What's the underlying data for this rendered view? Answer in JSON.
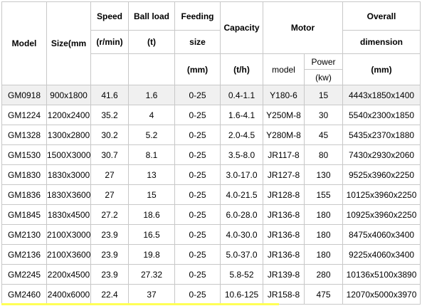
{
  "header": {
    "model": "Model",
    "size": "Size(mm",
    "speed": "Speed",
    "speed_unit": "(r/min)",
    "ball_load": "Ball load",
    "ball_load_unit": "(t)",
    "feeding": "Feeding",
    "feeding_sub": "size",
    "feeding_unit": "(mm)",
    "capacity": "Capacity",
    "capacity_unit": "(t/h)",
    "motor": "Motor",
    "motor_model": "model",
    "power": "Power",
    "power_unit": "(kw)",
    "overall": "Overall",
    "overall_sub": "dimension",
    "overall_unit": "(mm)"
  },
  "table": {
    "rows": [
      [
        "GM0918",
        "900x1800",
        "41.6",
        "1.6",
        "0-25",
        "0.4-1.1",
        "Y180-6",
        "15",
        "4443x1850x1400"
      ],
      [
        "GM1224",
        "1200x2400",
        "35.2",
        "4",
        "0-25",
        "1.6-4.1",
        "Y250M-8",
        "30",
        "5540x2300x1850"
      ],
      [
        "GM1328",
        "1300x2800",
        "30.2",
        "5.2",
        "0-25",
        "2.0-4.5",
        "Y280M-8",
        "45",
        "5435x2370x1880"
      ],
      [
        "GM1530",
        "1500X3000",
        "30.7",
        "8.1",
        "0-25",
        "3.5-8.0",
        "JR117-8",
        "80",
        "7430x2930x2060"
      ],
      [
        "GM1830",
        "1830x3000",
        "27",
        "13",
        "0-25",
        "3.0-17.0",
        "JR127-8",
        "130",
        "9525x3960x2250"
      ],
      [
        "GM1836",
        "1830X3600",
        "27",
        "15",
        "0-25",
        "4.0-21.5",
        "JR128-8",
        "155",
        "10125x3960x2250"
      ],
      [
        "GM1845",
        "1830x4500",
        "27.2",
        "18.6",
        "0-25",
        "6.0-28.0",
        "JR136-8",
        "180",
        "10925x3960x2250"
      ],
      [
        "GM2130",
        "2100X3000",
        "23.9",
        "16.5",
        "0-25",
        "4.0-30.0",
        "JR136-8",
        "180",
        "8475x4060x3400"
      ],
      [
        "GM2136",
        "2100X3600",
        "23.9",
        "19.8",
        "0-25",
        "5.0-37.0",
        "JR136-8",
        "180",
        "9225x4060x3400"
      ],
      [
        "GM2245",
        "2200x4500",
        "23.9",
        "27.32",
        "0-25",
        "5.8-52",
        "JR139-8",
        "280",
        "10136x5100x3890"
      ],
      [
        "GM2460",
        "2400x6000",
        "22.4",
        "37",
        "0-25",
        "10.6-125",
        "JR158-8",
        "475",
        "12070x5000x3970"
      ]
    ]
  }
}
